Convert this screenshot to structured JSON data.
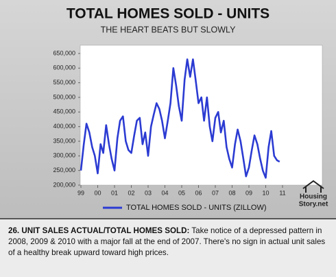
{
  "chart_data": {
    "type": "line",
    "title": "TOTAL HOMES SOLD - UNITS",
    "subtitle": "THE HEART BEATS BUT SLOWLY",
    "x": [
      1999,
      1999.17,
      1999.33,
      1999.5,
      1999.67,
      1999.83,
      2000,
      2000.17,
      2000.33,
      2000.5,
      2000.67,
      2000.83,
      2001,
      2001.17,
      2001.33,
      2001.5,
      2001.67,
      2001.83,
      2002,
      2002.17,
      2002.33,
      2002.5,
      2002.67,
      2002.83,
      2003,
      2003.17,
      2003.33,
      2003.5,
      2003.67,
      2003.83,
      2004,
      2004.17,
      2004.33,
      2004.5,
      2004.67,
      2004.83,
      2005,
      2005.17,
      2005.33,
      2005.5,
      2005.67,
      2005.83,
      2006,
      2006.17,
      2006.33,
      2006.5,
      2006.67,
      2006.83,
      2007,
      2007.17,
      2007.33,
      2007.5,
      2007.67,
      2007.83,
      2008,
      2008.17,
      2008.33,
      2008.5,
      2008.67,
      2008.83,
      2009,
      2009.17,
      2009.33,
      2009.5,
      2009.67,
      2009.83,
      2010,
      2010.17,
      2010.33,
      2010.5,
      2010.67,
      2010.83
    ],
    "series": [
      {
        "name": "TOTAL HOMES SOLD - UNITS (ZILLOW)",
        "color": "#2b3bd2",
        "values": [
          250000,
          340000,
          410000,
          380000,
          330000,
          300000,
          240000,
          340000,
          310000,
          405000,
          340000,
          290000,
          250000,
          360000,
          420000,
          435000,
          350000,
          320000,
          310000,
          370000,
          420000,
          430000,
          340000,
          380000,
          300000,
          400000,
          440000,
          480000,
          460000,
          420000,
          360000,
          420000,
          480000,
          600000,
          540000,
          470000,
          420000,
          560000,
          630000,
          570000,
          630000,
          560000,
          480000,
          500000,
          420000,
          500000,
          400000,
          350000,
          430000,
          450000,
          380000,
          420000,
          330000,
          290000,
          260000,
          340000,
          390000,
          350000,
          290000,
          230000,
          260000,
          320000,
          370000,
          340000,
          290000,
          250000,
          225000,
          330000,
          385000,
          300000,
          285000,
          280000
        ]
      }
    ],
    "xlim": [
      1999,
      2011
    ],
    "xticks": [
      {
        "value": 1999,
        "label": "99"
      },
      {
        "value": 2000,
        "label": "00"
      },
      {
        "value": 2001,
        "label": "01"
      },
      {
        "value": 2002,
        "label": "02"
      },
      {
        "value": 2003,
        "label": "03"
      },
      {
        "value": 2004,
        "label": "04"
      },
      {
        "value": 2005,
        "label": "05"
      },
      {
        "value": 2006,
        "label": "06"
      },
      {
        "value": 2007,
        "label": "07"
      },
      {
        "value": 2008,
        "label": "08"
      },
      {
        "value": 2009,
        "label": "09"
      },
      {
        "value": 2010,
        "label": "10"
      },
      {
        "value": 2011,
        "label": "11"
      }
    ],
    "ylim": [
      200000,
      650000
    ],
    "yticks": [
      {
        "value": 200000,
        "label": "200,000"
      },
      {
        "value": 250000,
        "label": "250,000"
      },
      {
        "value": 300000,
        "label": "300,000"
      },
      {
        "value": 350000,
        "label": "350,000"
      },
      {
        "value": 400000,
        "label": "400,000"
      },
      {
        "value": 450000,
        "label": "450,000"
      },
      {
        "value": 500000,
        "label": "500,000"
      },
      {
        "value": 550000,
        "label": "550,000"
      },
      {
        "value": 600000,
        "label": "600,000"
      },
      {
        "value": 650000,
        "label": "650,000"
      }
    ],
    "legend": "bottom"
  },
  "logo": [
    "Housing",
    "Story.net"
  ],
  "caption": {
    "heading": "26. UNIT SALES ACTUAL/TOTAL HOMES SOLD:",
    "text": "Take notice of a depressed pattern in 2008, 2009 & 2010 with a major fall at the end of 2007. There's no sign in actual unit sales of a healthy break upward toward high prices."
  }
}
